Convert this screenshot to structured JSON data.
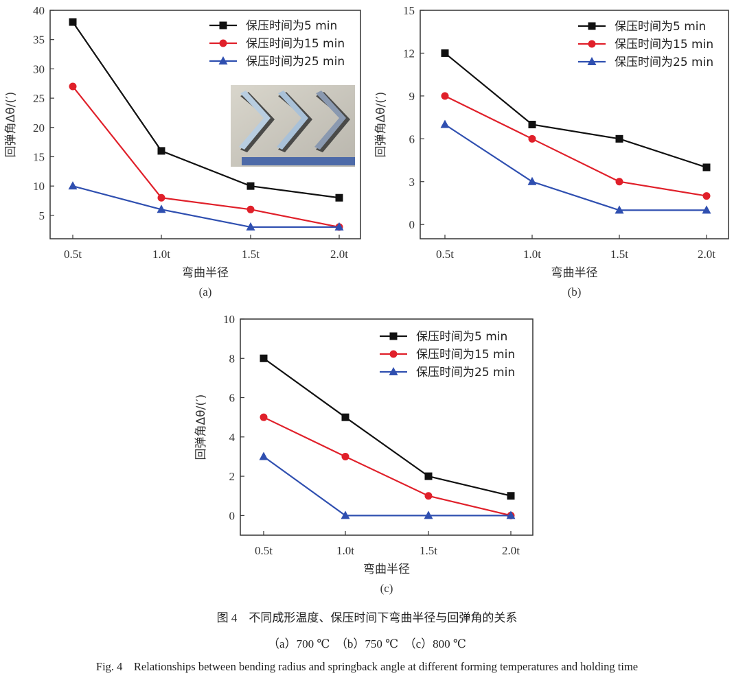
{
  "chart_data": [
    {
      "type": "line",
      "panel_label": "(a)",
      "categories": [
        "0.5t",
        "1.0t",
        "1.5t",
        "2.0t"
      ],
      "xlabel": "弯曲半径",
      "ylabel": "回弹角Δθ/(′)",
      "ylim": [
        1,
        40
      ],
      "yticks": [
        5,
        10,
        15,
        20,
        25,
        30,
        35,
        40
      ],
      "legend_position": "top-right",
      "has_inset_photo": true,
      "series": [
        {
          "name": "保压时间为5 min",
          "values": [
            38,
            16,
            10,
            8
          ],
          "color": "#111111",
          "marker": "square"
        },
        {
          "name": "保压时间为15 min",
          "values": [
            27,
            8,
            6,
            3
          ],
          "color": "#e0202a",
          "marker": "circle"
        },
        {
          "name": "保压时间为25 min",
          "values": [
            10,
            6,
            3,
            3
          ],
          "color": "#2f4fb0",
          "marker": "triangle"
        }
      ]
    },
    {
      "type": "line",
      "panel_label": "(b)",
      "categories": [
        "0.5t",
        "1.0t",
        "1.5t",
        "2.0t"
      ],
      "xlabel": "弯曲半径",
      "ylabel": "回弹角Δθ/(′)",
      "ylim": [
        -1,
        15
      ],
      "yticks": [
        0,
        3,
        6,
        9,
        12,
        15
      ],
      "legend_position": "top-right",
      "series": [
        {
          "name": "保压时间为5 min",
          "values": [
            12,
            7,
            6,
            4
          ],
          "color": "#111111",
          "marker": "square"
        },
        {
          "name": "保压时间为15 min",
          "values": [
            9,
            6,
            3,
            2
          ],
          "color": "#e0202a",
          "marker": "circle"
        },
        {
          "name": "保压时间为25 min",
          "values": [
            7,
            3,
            1,
            1
          ],
          "color": "#2f4fb0",
          "marker": "triangle"
        }
      ]
    },
    {
      "type": "line",
      "panel_label": "(c)",
      "categories": [
        "0.5t",
        "1.0t",
        "1.5t",
        "2.0t"
      ],
      "xlabel": "弯曲半径",
      "ylabel": "回弹角Δθ/(′)",
      "ylim": [
        -1,
        10
      ],
      "yticks": [
        0,
        2,
        4,
        6,
        8,
        10
      ],
      "legend_position": "top-right",
      "series": [
        {
          "name": "保压时间为5 min",
          "values": [
            8,
            5,
            2,
            1
          ],
          "color": "#111111",
          "marker": "square"
        },
        {
          "name": "保压时间为15 min",
          "values": [
            5,
            3,
            1,
            0
          ],
          "color": "#e0202a",
          "marker": "circle"
        },
        {
          "name": "保压时间为25 min",
          "values": [
            3,
            0,
            0,
            0
          ],
          "color": "#2f4fb0",
          "marker": "triangle"
        }
      ]
    }
  ],
  "caption": {
    "cn_title": "图 4　不同成形温度、保压时间下弯曲半径与回弹角的关系",
    "cn_sub": "（a）700 ℃　（b）750 ℃　（c）800 ℃",
    "en_title": "Fig. 4　Relationships between bending radius and springback angle at different forming temperatures and holding time"
  }
}
